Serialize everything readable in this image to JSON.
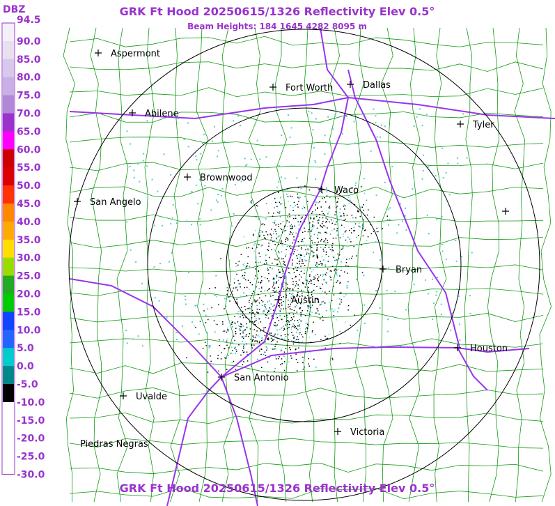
{
  "header": {
    "title": "GRK Ft Hood 20250615/1326 Reflectivity Elev 0.5°",
    "subtitle": "Beam Heights: 184 1645 4282 8095 m",
    "footer": "GRK Ft Hood 20250615/1326 Reflectivity Elev 0.5°"
  },
  "legend": {
    "unit": "DBZ",
    "labels": [
      "94.5",
      "90.0",
      "85.0",
      "80.0",
      "75.0",
      "70.0",
      "65.0",
      "60.0",
      "55.0",
      "50.0",
      "45.0",
      "40.0",
      "35.0",
      "30.0",
      "25.0",
      "20.0",
      "15.0",
      "10.0",
      "5.0",
      "0.0",
      "-5.0",
      "-10.0",
      "-15.0",
      "-20.0",
      "-25.0",
      "-30.0"
    ]
  },
  "cities": [
    "Aspermont",
    "Fort Worth",
    "Dallas",
    "Abilene",
    "Tyler",
    "Brownwood",
    "Waco",
    "San Angelo",
    "Bryan",
    "Austin",
    "Houston",
    "San Antonio",
    "Uvalde",
    "Victoria",
    "Piedras Negras"
  ]
}
